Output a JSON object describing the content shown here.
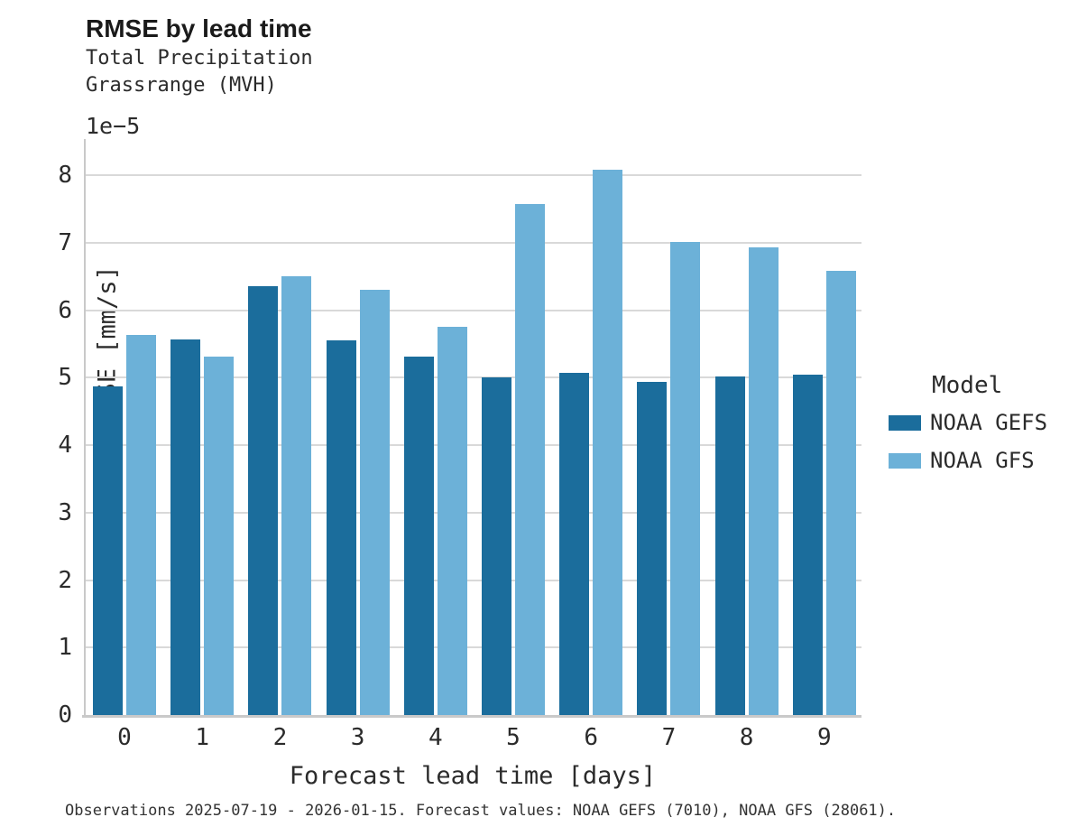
{
  "header": {
    "title": "RMSE by lead time",
    "subtitle1": "Total Precipitation",
    "subtitle2": "Grassrange (MVH)"
  },
  "axes": {
    "offset_text": "1e−5",
    "xlabel": "Forecast lead time [days]",
    "ylabel": "RMSE [mm/s]"
  },
  "legend": {
    "title": "Model",
    "entries": [
      {
        "label": "NOAA GEFS",
        "color": "#1b6d9c"
      },
      {
        "label": "NOAA GFS",
        "color": "#6cb1d8"
      }
    ]
  },
  "footer": {
    "text": "Observations 2025-07-19 - 2026-01-15. Forecast values: NOAA GEFS (7010), NOAA GFS (28061)."
  },
  "chart_data": {
    "type": "bar",
    "title": "RMSE by lead time",
    "subtitle": [
      "Total Precipitation",
      "Grassrange (MVH)"
    ],
    "categories": [
      0,
      1,
      2,
      3,
      4,
      5,
      6,
      7,
      8,
      9
    ],
    "series": [
      {
        "name": "NOAA GEFS",
        "color": "#1b6d9c",
        "values": [
          4.87,
          5.57,
          6.36,
          5.56,
          5.32,
          5.0,
          5.08,
          4.94,
          5.02,
          5.05
        ]
      },
      {
        "name": "NOAA GFS",
        "color": "#6cb1d8",
        "values": [
          5.64,
          5.32,
          6.51,
          6.31,
          5.76,
          7.58,
          8.09,
          7.01,
          6.94,
          6.58
        ]
      }
    ],
    "value_scale": "1e-5",
    "value_units": "mm/s",
    "xlabel": "Forecast lead time [days]",
    "ylabel": "RMSE [mm/s]",
    "ylim": [
      0,
      8.54
    ],
    "yticks": [
      0,
      1,
      2,
      3,
      4,
      5,
      6,
      7,
      8
    ],
    "grid": "horizontal",
    "legend_title": "Model",
    "legend_position": "right",
    "footnote": "Observations 2025-07-19 - 2026-01-15. Forecast values: NOAA GEFS (7010), NOAA GFS (28061)."
  }
}
